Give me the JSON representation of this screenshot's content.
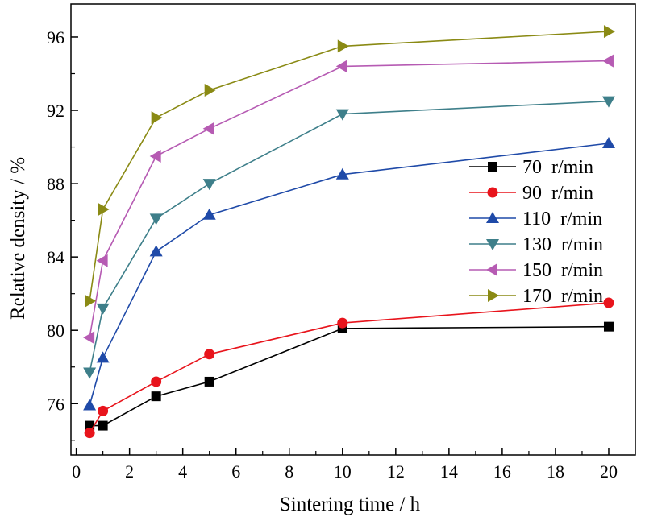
{
  "chart_data": {
    "type": "line",
    "xlabel": "Sintering time / h",
    "ylabel": "Relative density / %",
    "xlim": [
      -0.2,
      21
    ],
    "ylim": [
      73.2,
      97.8
    ],
    "xticks": [
      0,
      2,
      4,
      6,
      8,
      10,
      12,
      14,
      16,
      18,
      20
    ],
    "yticks": [
      76,
      80,
      84,
      88,
      92,
      96
    ],
    "legend_position": "right",
    "x": [
      0.5,
      1,
      3,
      5,
      10,
      20
    ],
    "series": [
      {
        "name": "70  r/min",
        "marker": "square",
        "color": "#000000",
        "values": [
          74.8,
          74.8,
          76.4,
          77.2,
          80.1,
          80.2
        ]
      },
      {
        "name": "90  r/min",
        "marker": "circle",
        "color": "#e8141c",
        "values": [
          74.4,
          75.6,
          77.2,
          78.7,
          80.4,
          81.5
        ]
      },
      {
        "name": "110  r/min",
        "marker": "triangle-up",
        "color": "#1f4aa8",
        "values": [
          75.9,
          78.5,
          84.3,
          86.3,
          88.5,
          90.2
        ]
      },
      {
        "name": "130  r/min",
        "marker": "triangle-down",
        "color": "#3e7f8a",
        "values": [
          77.7,
          81.2,
          86.1,
          88.0,
          91.8,
          92.5
        ]
      },
      {
        "name": "150  r/min",
        "marker": "triangle-left",
        "color": "#b65bb3",
        "values": [
          79.6,
          83.8,
          89.5,
          91.0,
          94.4,
          94.7
        ]
      },
      {
        "name": "170  r/min",
        "marker": "triangle-right",
        "color": "#8a8a14",
        "values": [
          81.6,
          86.6,
          91.6,
          93.1,
          95.5,
          96.3
        ]
      }
    ]
  }
}
